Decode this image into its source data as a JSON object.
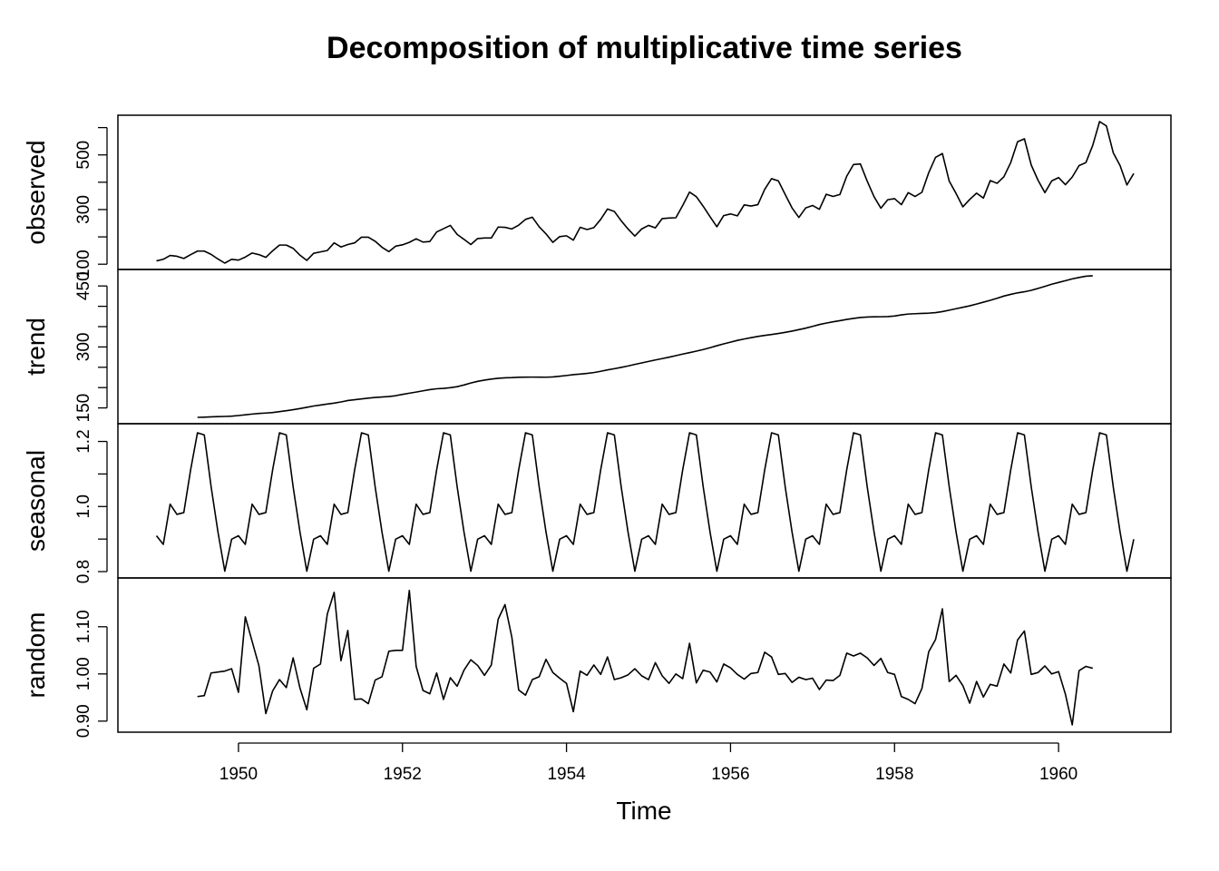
{
  "chart_data": {
    "type": "line",
    "title": "Decomposition of multiplicative time series",
    "xlabel": "Time",
    "xlim": [
      1948.53,
      1961.37
    ],
    "x_ticks": [
      1950,
      1952,
      1954,
      1956,
      1958,
      1960
    ],
    "x_tick_labels": [
      "1950",
      "1952",
      "1954",
      "1956",
      "1958",
      "1960"
    ],
    "time_start": 1949,
    "frequency": 12,
    "grid": false,
    "legend": "none",
    "panels": [
      {
        "name": "observed",
        "ylabel": "observed",
        "ylim": [
          104,
          622
        ],
        "y_ticks": [
          100,
          200,
          300,
          400,
          500,
          600
        ],
        "y_tick_labels": [
          "100",
          "",
          "300",
          "",
          "500",
          ""
        ],
        "offset": 0,
        "values": [
          112,
          118,
          132,
          129,
          121,
          135,
          148,
          148,
          136,
          119,
          104,
          118,
          115,
          126,
          141,
          135,
          125,
          149,
          170,
          170,
          158,
          133,
          114,
          140,
          145,
          150,
          178,
          163,
          172,
          178,
          199,
          199,
          184,
          162,
          146,
          166,
          171,
          180,
          193,
          181,
          183,
          218,
          230,
          242,
          209,
          191,
          172,
          194,
          196,
          196,
          236,
          235,
          229,
          243,
          264,
          272,
          237,
          211,
          180,
          201,
          204,
          188,
          235,
          227,
          234,
          264,
          302,
          293,
          259,
          229,
          203,
          229,
          242,
          233,
          267,
          269,
          270,
          315,
          364,
          347,
          312,
          274,
          237,
          278,
          284,
          277,
          317,
          313,
          318,
          374,
          413,
          405,
          355,
          306,
          271,
          306,
          315,
          301,
          356,
          348,
          355,
          422,
          465,
          467,
          404,
          347,
          305,
          336,
          340,
          318,
          362,
          348,
          363,
          435,
          491,
          505,
          404,
          359,
          310,
          337,
          360,
          342,
          406,
          396,
          420,
          472,
          548,
          559,
          463,
          407,
          362,
          405,
          417,
          391,
          419,
          461,
          472,
          535,
          622,
          606,
          508,
          461,
          390,
          432
        ]
      },
      {
        "name": "trend",
        "ylabel": "trend",
        "ylim": [
          126.8,
          475.0
        ],
        "y_ticks": [
          150,
          200,
          250,
          300,
          350,
          400,
          450
        ],
        "y_tick_labels": [
          "150",
          "",
          "",
          "300",
          "",
          "",
          "450"
        ],
        "offset": 6,
        "values": [
          126.79,
          127.25,
          127.96,
          128.58,
          129.0,
          129.75,
          131.25,
          133.08,
          134.92,
          136.42,
          137.42,
          138.75,
          140.92,
          143.17,
          145.71,
          148.42,
          151.54,
          154.71,
          157.13,
          159.54,
          161.83,
          164.75,
          168.17,
          170.17,
          172.21,
          174.08,
          175.75,
          176.83,
          178.04,
          180.04,
          183.25,
          186.21,
          189.04,
          192.04,
          194.96,
          197.08,
          198.04,
          199.75,
          202.21,
          206.42,
          211.29,
          215.33,
          218.5,
          220.92,
          222.92,
          224.0,
          224.5,
          225.46,
          225.71,
          225.83,
          225.75,
          225.54,
          226.17,
          227.88,
          229.75,
          231.75,
          233.33,
          234.92,
          237.04,
          240.13,
          243.63,
          246.5,
          249.67,
          253.13,
          257.08,
          260.79,
          264.29,
          268.0,
          271.29,
          274.79,
          278.54,
          282.42,
          285.96,
          289.67,
          293.67,
          298.21,
          302.96,
          307.5,
          311.83,
          316.13,
          319.63,
          322.83,
          325.92,
          328.46,
          330.58,
          333.04,
          335.88,
          339.04,
          342.54,
          346.25,
          350.58,
          355.13,
          358.71,
          361.79,
          364.71,
          367.79,
          370.25,
          372.46,
          373.67,
          374.04,
          374.29,
          374.75,
          376.17,
          378.92,
          380.96,
          381.79,
          382.46,
          383.17,
          384.54,
          386.92,
          390.42,
          394.13,
          397.5,
          401.25,
          405.58,
          410.13,
          414.67,
          419.75,
          425.21,
          429.42,
          433.08,
          435.71,
          439.33,
          444.04,
          449.08,
          454.29,
          458.71,
          463.04,
          467.5,
          471.0,
          474.0,
          475.04
        ]
      },
      {
        "name": "seasonal",
        "ylabel": "seasonal",
        "ylim": [
          0.8,
          1.235
        ],
        "y_ticks": [
          0.8,
          0.9,
          1.0,
          1.1,
          1.2
        ],
        "y_tick_labels": [
          "0.8",
          "",
          "1.0",
          "",
          "1.2"
        ],
        "offset": 0,
        "pattern": [
          0.9102,
          0.8836,
          1.0073,
          0.9759,
          0.9814,
          1.1127,
          1.2266,
          1.2199,
          1.0605,
          0.9217,
          0.8011,
          0.8996
        ]
      },
      {
        "name": "random",
        "ylabel": "random",
        "ylim": [
          0.89,
          1.19
        ],
        "y_ticks": [
          0.9,
          1.0,
          1.1
        ],
        "y_tick_labels": [
          "0.90",
          "1.00",
          "1.10"
        ],
        "offset": 6,
        "values": [
          0.952,
          0.954,
          1.002,
          1.004,
          1.006,
          1.011,
          0.961,
          1.121,
          1.069,
          1.017,
          0.916,
          0.964,
          0.988,
          0.971,
          1.034,
          0.97,
          0.924,
          1.012,
          1.021,
          1.127,
          1.173,
          1.028,
          1.092,
          0.946,
          0.947,
          0.937,
          0.987,
          0.994,
          1.048,
          1.05,
          1.05,
          1.177,
          1.016,
          0.965,
          0.958,
          1.002,
          0.946,
          0.992,
          0.974,
          1.008,
          1.03,
          1.018,
          0.997,
          1.019,
          1.116,
          1.147,
          1.078,
          0.966,
          0.955,
          0.988,
          0.994,
          1.031,
          1.003,
          0.991,
          0.98,
          0.92,
          1.006,
          0.997,
          1.019,
          0.999,
          1.036,
          0.988,
          0.992,
          0.998,
          1.011,
          0.996,
          0.988,
          1.024,
          0.996,
          0.98,
          1.0,
          0.99,
          1.065,
          0.981,
          1.008,
          1.004,
          0.983,
          1.021,
          1.013,
          0.999,
          0.989,
          1.001,
          1.003,
          1.046,
          1.036,
          0.999,
          1.001,
          0.982,
          0.993,
          0.988,
          0.991,
          0.967,
          0.987,
          0.986,
          0.997,
          1.044,
          1.038,
          1.044,
          1.034,
          1.018,
          1.033,
          1.003,
          0.999,
          0.952,
          0.946,
          0.937,
          0.969,
          1.047,
          1.073,
          1.138,
          0.984,
          0.997,
          0.975,
          0.938,
          0.984,
          0.951,
          0.978,
          0.974,
          1.021,
          1.002,
          1.072,
          1.091,
          0.999,
          1.003,
          1.017,
          1.0,
          1.005,
          0.957,
          0.892,
          1.007,
          1.016,
          1.012
        ]
      }
    ]
  }
}
